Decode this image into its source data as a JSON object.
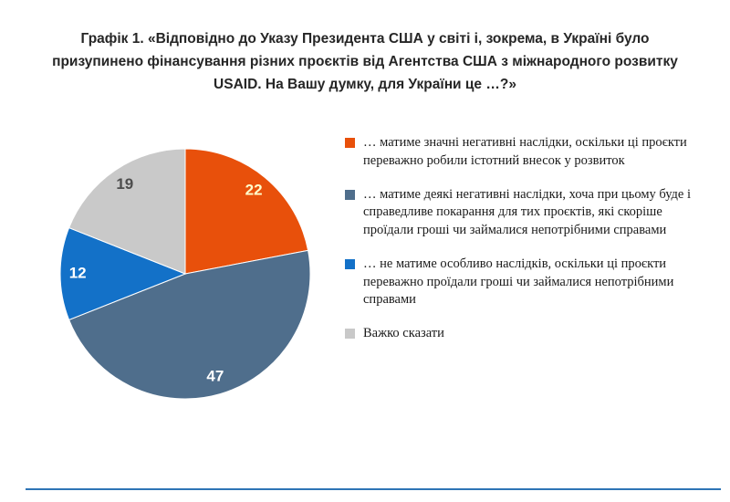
{
  "title": "Графік 1. «Відповідно до Указу Президента США у світі і, зокрема, в Україні було призупинено фінансування різних проєктів від Агентства США з міжнародного розвитку USAID. На Вашу думку, для України це …?»",
  "chart_data": {
    "type": "pie",
    "title": "Графік 1. «Відповідно до Указу Президента США у світі і, зокрема, в Україні було призупинено фінансування різних проєктів від Агентства США з міжнародного розвитку USAID. На Вашу думку, для України це …?»",
    "direction": "clockwise",
    "start_angle_deg": 0,
    "legend_position": "right",
    "value_labels": "inside",
    "slices": [
      {
        "label": "… матиме значні негативні наслідки, оскільки ці проєкти переважно робили істотний внесок у розвиток",
        "value": 22,
        "color": "#E8500B",
        "value_label_color": "#FFFFCC"
      },
      {
        "label": "… матиме деякі негативні наслідки, хоча при цьому буде і справедливе покарання для тих проєктів, які скоріше проїдали гроші чи займалися непотрібними справами",
        "value": 47,
        "color": "#4F6E8C",
        "value_label_color": "#FFFFFF"
      },
      {
        "label": "… не матиме особливо наслідків, оскільки ці проєкти переважно проїдали гроші чи займалися непотрібними справами",
        "value": 12,
        "color": "#1371C8",
        "value_label_color": "#FFFFFF"
      },
      {
        "label": "Важко сказати",
        "value": 19,
        "color": "#C9C9C9",
        "value_label_color": "#4D4D4D"
      }
    ]
  },
  "footer": {
    "divider_color": "#2E74B5"
  }
}
